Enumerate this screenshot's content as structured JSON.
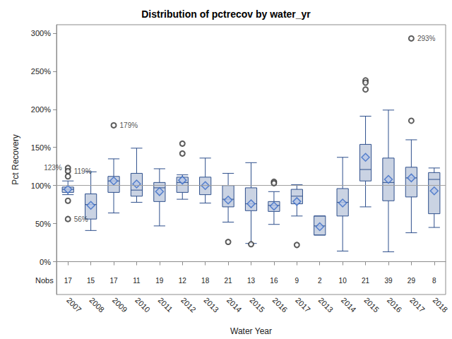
{
  "chart_data": {
    "type": "boxplot",
    "title": "Distribution of pctrecov by water_yr",
    "x_label": "Water Year",
    "y_label": "Pct Recovery",
    "categories": [
      "2007",
      "2008",
      "2009",
      "2010",
      "2011",
      "2012",
      "2013",
      "2014",
      "2015",
      "2016",
      "2017",
      "2013",
      "2014",
      "2015",
      "2016",
      "2017",
      "2018"
    ],
    "boxes": [
      {
        "min": 88,
        "q1": 91,
        "median": 95,
        "q3": 98,
        "max": 106,
        "mean": 95,
        "outliers": [
          {
            "value": 123,
            "label": "123%"
          },
          {
            "value": 119,
            "label": "119%"
          },
          112,
          80,
          {
            "value": 56,
            "label": "56%"
          }
        ]
      },
      {
        "min": 41,
        "q1": 56,
        "median": 75,
        "q3": 89,
        "max": 118,
        "mean": 74,
        "outliers": []
      },
      {
        "min": 64,
        "q1": 91,
        "median": 106,
        "q3": 112,
        "max": 135,
        "mean": 106,
        "outliers": [
          {
            "value": 179,
            "label": "179%"
          }
        ]
      },
      {
        "min": 78,
        "q1": 86,
        "median": 94,
        "q3": 116,
        "max": 149,
        "mean": 102,
        "outliers": []
      },
      {
        "min": 47,
        "q1": 79,
        "median": 97,
        "q3": 104,
        "max": 122,
        "mean": 92,
        "outliers": []
      },
      {
        "min": 82,
        "q1": 91,
        "median": 104,
        "q3": 111,
        "max": 114,
        "mean": 107,
        "outliers": [
          155,
          142
        ]
      },
      {
        "min": 77,
        "q1": 88,
        "median": 100,
        "q3": 111,
        "max": 136,
        "mean": 100,
        "outliers": []
      },
      {
        "min": 52,
        "q1": 72,
        "median": 82,
        "q3": 100,
        "max": 116,
        "mean": 81,
        "outliers": [
          26
        ]
      },
      {
        "min": 24,
        "q1": 67,
        "median": 76,
        "q3": 97,
        "max": 130,
        "mean": 76,
        "outliers": [
          23
        ]
      },
      {
        "min": 49,
        "q1": 66,
        "median": 74,
        "q3": 79,
        "max": 92,
        "mean": 73,
        "outliers": [
          105,
          103
        ]
      },
      {
        "min": 60,
        "q1": 76,
        "median": 86,
        "q3": 95,
        "max": 101,
        "mean": 79,
        "outliers": [
          22
        ]
      },
      {
        "min": 35,
        "q1": 35,
        "median": 47,
        "q3": 60,
        "max": 60,
        "mean": 46,
        "outliers": []
      },
      {
        "min": 14,
        "q1": 60,
        "median": 78,
        "q3": 96,
        "max": 137,
        "mean": 77,
        "outliers": []
      },
      {
        "min": 72,
        "q1": 106,
        "median": 121,
        "q3": 154,
        "max": 191,
        "mean": 137,
        "outliers": [
          238,
          235,
          226
        ]
      },
      {
        "min": 13,
        "q1": 80,
        "median": 104,
        "q3": 136,
        "max": 199,
        "mean": 108,
        "outliers": []
      },
      {
        "min": 38,
        "q1": 85,
        "median": 110,
        "q3": 124,
        "max": 160,
        "mean": 110,
        "outliers": [
          185,
          {
            "value": 293,
            "label": "293%"
          }
        ]
      },
      {
        "min": 45,
        "q1": 63,
        "median": 108,
        "q3": 117,
        "max": 123,
        "mean": 93,
        "outliers": []
      }
    ],
    "nobs_label": "Nobs",
    "nobs": [
      17,
      15,
      17,
      11,
      19,
      12,
      18,
      21,
      13,
      16,
      9,
      2,
      10,
      21,
      39,
      29,
      8
    ],
    "reference_line": 100,
    "ylim": [
      -43,
      311
    ],
    "yticks": [
      {
        "value": 0,
        "label": "0%"
      },
      {
        "value": 50,
        "label": "50%"
      },
      {
        "value": 100,
        "label": "100%"
      },
      {
        "value": 150,
        "label": "150%"
      },
      {
        "value": 200,
        "label": "200%"
      },
      {
        "value": 250,
        "label": "250%"
      },
      {
        "value": 300,
        "label": "300%"
      }
    ],
    "color": "#2e4f8c",
    "marker": "diamond",
    "grid": false
  }
}
